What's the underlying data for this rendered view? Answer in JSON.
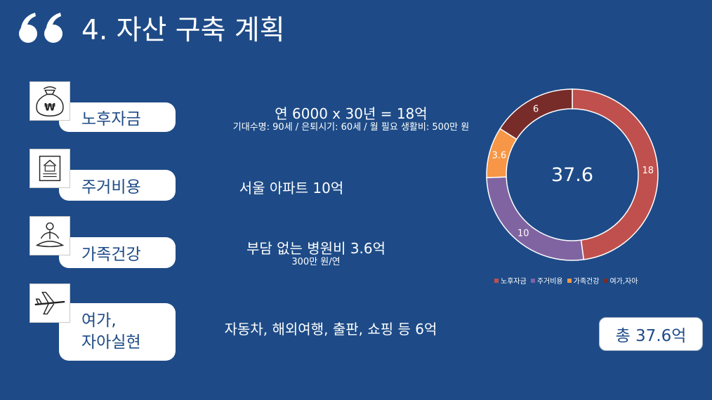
{
  "slide": {
    "title": "4. 자산 구축 계획",
    "quote_icon": "double-quote-icon"
  },
  "categories": [
    {
      "label": "노후자금",
      "icon": "money-bag-won-icon",
      "desc_main": "연 6000 x 30년 = 18억",
      "desc_sub": "기대수명: 90세 / 은퇴시기: 60세 / 월 필요 생활비: 500만 원"
    },
    {
      "label": "주거비용",
      "icon": "house-document-icon",
      "desc_main": "서울 아파트 10억",
      "desc_sub": ""
    },
    {
      "label": "가족건강",
      "icon": "meditation-person-icon",
      "desc_main": "부담 없는 병원비 3.6억",
      "desc_sub": "300만 원/연"
    },
    {
      "label_line1": "여가,",
      "label_line2": "자아실현",
      "icon": "airplane-icon",
      "desc_main": "자동차, 해외여행, 출판, 쇼핑 등 6억",
      "desc_sub": ""
    }
  ],
  "chart_data": {
    "type": "pie",
    "variant": "donut",
    "center_label": "37.6",
    "categories": [
      "노후자금",
      "주거비용",
      "가족건강",
      "여가,자아"
    ],
    "values": [
      18,
      10,
      3.6,
      6
    ],
    "data_labels": [
      "18",
      "10",
      "3.6",
      "6"
    ],
    "colors": [
      "#c0504d",
      "#8064a2",
      "#f79646",
      "#772c2a"
    ],
    "legend_position": "bottom"
  },
  "total": {
    "label": "총 37.6억"
  }
}
